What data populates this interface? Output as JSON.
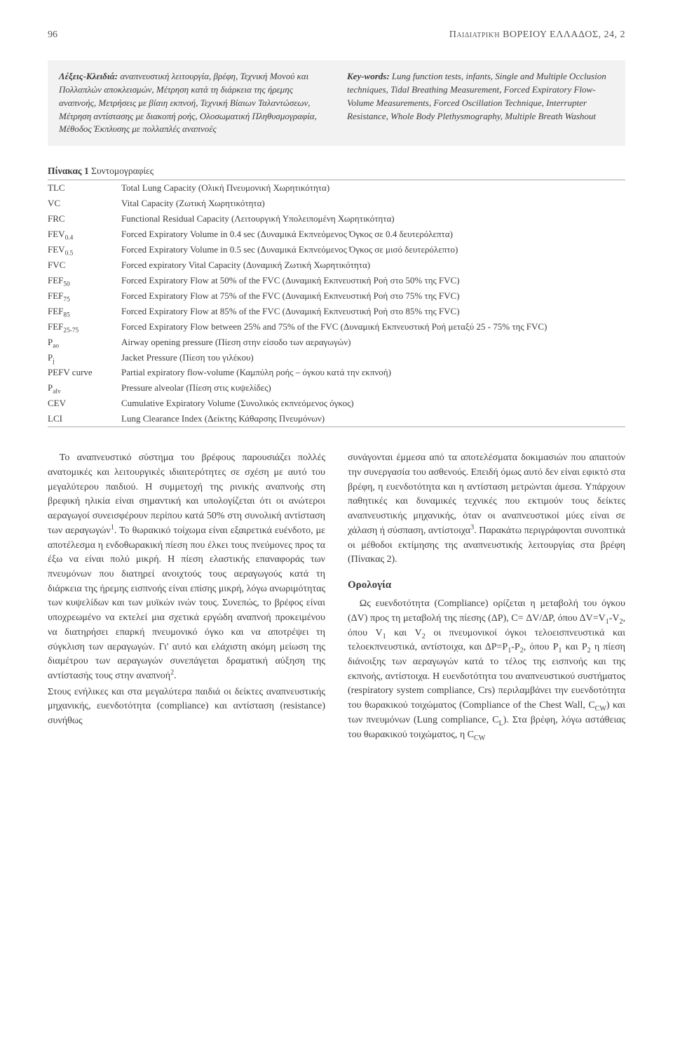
{
  "header": {
    "page_number": "96",
    "journal": "Παιδιατρική ΒΟΡΕΙΟΥ ΕΛΛΑΔΟΣ, 24, 2"
  },
  "keywords_box": {
    "background_color": "#f2f2f2",
    "left": {
      "label": "Λέξεις-Κλειδιά:",
      "text": " αναπνευστική λειτουργία, βρέφη, Τεχνική Μονού και Πολλαπλών αποκλεισμών, Μέτρηση κατά τη διάρκεια της ήρεμης αναπνοής, Μετρήσεις με βίαιη εκπνοή, Τεχνική Βίαιων Ταλαντώσεων, Μέτρηση αντίστασης με διακοπή ροής, Ολοσωματική Πληθυσμογραφία, Μέθοδος Έκπλυσης με πολλαπλές αναπνοές"
    },
    "right": {
      "label": "Key-words:",
      "text": " Lung function tests, infants, Single and Multiple Occlusion techniques, Tidal Breathing Measurement, Forced Expiratory Flow-Volume Measurements, Forced Oscillation Technique, Interrupter Resistance, Whole Body Plethysmography, Multiple Breath Washout"
    }
  },
  "table1": {
    "title_bold": "Πίνακας 1",
    "title_rest": " Συντομογραφίες",
    "rows": [
      {
        "abbr": "TLC",
        "def": "Total Lung Capacity (Ολική Πνευμονική Χωρητικότητα)"
      },
      {
        "abbr": "VC",
        "def": "Vital Capacity (Ζωτική Χωρητικότητα)"
      },
      {
        "abbr": "FRC",
        "def": "Functional Residual Capacity (Λειτουργική Υπολειπομένη Χωρητικότητα)"
      },
      {
        "abbr": "FEV<span class=\"sub\">0.4</span>",
        "def": "Forced Expiratory Volume in 0.4 sec (Δυναμικά Εκπνεόμενος Όγκος σε 0.4 δευτερόλεπτα)"
      },
      {
        "abbr": "FEV<span class=\"sub\">0.5</span>",
        "def": "Forced Expiratory Volume in 0.5 sec (Δυναμικά Εκπνεόμενος Όγκος σε μισό δευτερόλεπτο)"
      },
      {
        "abbr": "FVC",
        "def": "Forced expiratory Vital Capacity (Δυναμική Ζωτική Χωρητικότητα)"
      },
      {
        "abbr": "FEF<span class=\"sub\">50</span>",
        "def": "Forced Expiratory Flow at 50% of the FVC (Δυναμική Εκπνευστική Ροή στο 50% της FVC)"
      },
      {
        "abbr": "FEF<span class=\"sub\">75</span>",
        "def": "Forced Expiratory Flow at 75% of the FVC (Δυναμική Εκπνευστική Ροή στο 75% της FVC)"
      },
      {
        "abbr": "FEF<span class=\"sub\">85</span>",
        "def": "Forced Expiratory Flow at 85% of the FVC (Δυναμική Εκπνευστική Ροή στο 85% της FVC)"
      },
      {
        "abbr": "FEF<span class=\"sub\">25-75</span>",
        "def": "Forced Expiratory Flow between 25% and 75% of the FVC (Δυναμική Εκπνευστική Ροή μεταξύ 25 - 75% της FVC)"
      },
      {
        "abbr": "P<span class=\"sub\">ao</span>",
        "def": "Airway opening pressure (Πίεση στην είσοδο των αεραγωγών)"
      },
      {
        "abbr": "P<span class=\"sub\">j</span>",
        "def": "Jacket Pressure (Πίεση του γιλέκου)"
      },
      {
        "abbr": "PEFV curve",
        "def": "Partial expiratory flow-volume (Καμπύλη ροής – όγκου κατά την εκπνοή)"
      },
      {
        "abbr": "P<span class=\"sub\">alv</span>",
        "def": "Pressure alveolar (Πίεση στις κυψελίδες)"
      },
      {
        "abbr": "CEV",
        "def": "Cumulative Expiratory Volume (Συνολικός εκπνεόμενος όγκος)"
      },
      {
        "abbr": "LCI",
        "def": "Lung Clearance Index (Δείκτης Κάθαρσης Πνευμόνων)"
      }
    ]
  },
  "body": {
    "left": [
      "Το αναπνευστικό σύστημα του βρέφους παρουσιάζει πολλές ανατομικές και λειτουργικές ιδιαιτερότητες σε σχέση με αυτό του μεγαλύτερου παιδιού. Η συμμετοχή της ρινικής αναπνοής στη βρεφική ηλικία είναι σημαντική και υπολογίζεται ότι οι ανώτεροι αεραγωγοί συνεισφέρουν περίπου κατά 50% στη συνολική αντίσταση των αεραγωγών<span class=\"sup\">1</span>. Το θωρακικό τοίχωμα είναι εξαιρετικά ευένδοτο, με αποτέλεσμα η ενδοθωρακική πίεση που έλκει τους πνεύμονες προς τα έξω να είναι πολύ μικρή. Η πίεση ελαστικής επαναφοράς των πνευμόνων που διατηρεί ανοιχτούς τους αεραγωγούς κατά τη διάρκεια της ήρεμης εισπνοής είναι επίσης μικρή, λόγω ανωριμότητας των κυψελίδων και των μυϊκών ινών τους. Συνεπώς, το βρέφος είναι υποχρεωμένο να εκτελεί μια σχετικά εργώδη αναπνοή προκειμένου να διατηρήσει επαρκή πνευμονικό όγκο και να αποτρέψει τη σύγκλιση των αεραγωγών. Γι' αυτό και ελάχιστη ακόμη μείωση της διαμέτρου των αεραγωγών συνεπάγεται δραματική αύξηση της αντίστασής τους στην αναπνοή<span class=\"sup\">2</span>.",
      "Στους ενήλικες και στα μεγαλύτερα παιδιά οι δείκτες αναπνευστικής μηχανικής, ευενδοτότητα (compliance) και αντίσταση (resistance) συνήθως"
    ],
    "right_intro": [
      "συνάγονται έμμεσα από τα αποτελέσματα δοκιμασιών που απαιτούν την συνεργασία του ασθενούς. Επειδή όμως αυτό δεν είναι εφικτό στα βρέφη, η ευενδοτότητα και η αντίσταση μετρώνται άμεσα. Υπάρχουν παθητικές και δυναμικές τεχνικές που εκτιμούν τους δείκτες αναπνευστικής μηχανικής, όταν οι αναπνευστικοί μύες είναι σε χάλαση ή σύσπαση, αντίστοιχα<span class=\"sup\">3</span>. Παρακάτω περιγράφονται συνοπτικά οι μέθοδοι εκτίμησης της αναπνευστικής λειτουργίας στα βρέφη (Πίνακας 2)."
    ],
    "section_head": "Ορολογία",
    "right_section": [
      "Ως ευενδοτότητα (Compliance) ορίζεται η μεταβολή του όγκου (ΔV) προς τη μεταβολή της πίεσης (ΔP), C= ΔV/ΔP, όπου ΔV=V<span class=\"sub\">1</span>-V<span class=\"sub\">2</span>, όπου V<span class=\"sub\">1</span> και V<span class=\"sub\">2</span> οι πνευμονικοί όγκοι τελοεισπνευστικά και τελοεκπνευστικά, αντίστοιχα, και ΔP=P<span class=\"sub\">1</span>-P<span class=\"sub\">2</span>, όπου P<span class=\"sub\">1</span> και P<span class=\"sub\">2</span> η πίεση διάνοιξης των αεραγωγών κατά το τέλος της εισπνοής και της εκπνοής, αντίστοιχα. Η ευενδοτότητα του αναπνευστικού συστήματος (respiratory system compliance, Crs) περιλαμβάνει την ευενδοτότητα του θωρακικού τοιχώματος (Compliance of the Chest Wall, C<span class=\"sub\">CW</span>) και των πνευμόνων (Lung compliance, C<span class=\"sub\">L</span>). Στα βρέφη, λόγω αστάθειας του θωρακικού τοιχώματος, η C<span class=\"sub\">CW</span>"
    ]
  }
}
